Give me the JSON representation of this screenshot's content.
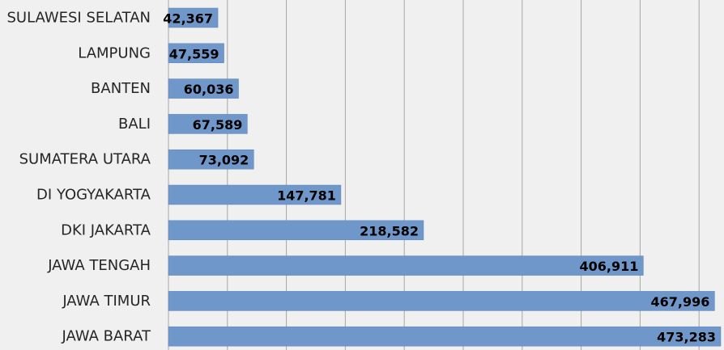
{
  "colors": {
    "bar": "#6f97c9",
    "bar_edge": "#5a84b8",
    "grid": "#a6a6a6",
    "background": "#f0f0f0"
  },
  "chart_data": {
    "type": "bar",
    "orientation": "horizontal",
    "categories": [
      "SULAWESI SELATAN",
      "LAMPUNG",
      "BANTEN",
      "BALI",
      "SUMATERA UTARA",
      "DI YOGYAKARTA",
      "DKI JAKARTA",
      "JAWA TENGAH",
      "JAWA TIMUR",
      "JAWA BARAT"
    ],
    "values": [
      42367,
      47559,
      60036,
      67589,
      73092,
      147781,
      218582,
      406911,
      467996,
      473283
    ],
    "data_labels": [
      "42,367",
      "47,559",
      "60,036",
      "67,589",
      "73,092",
      "147,781",
      "218,582",
      "406,911",
      "467,996",
      "473,283"
    ],
    "title": "",
    "xlabel": "",
    "ylabel": "",
    "xlim": [
      0,
      473283
    ],
    "grid": true,
    "legend": "none"
  }
}
